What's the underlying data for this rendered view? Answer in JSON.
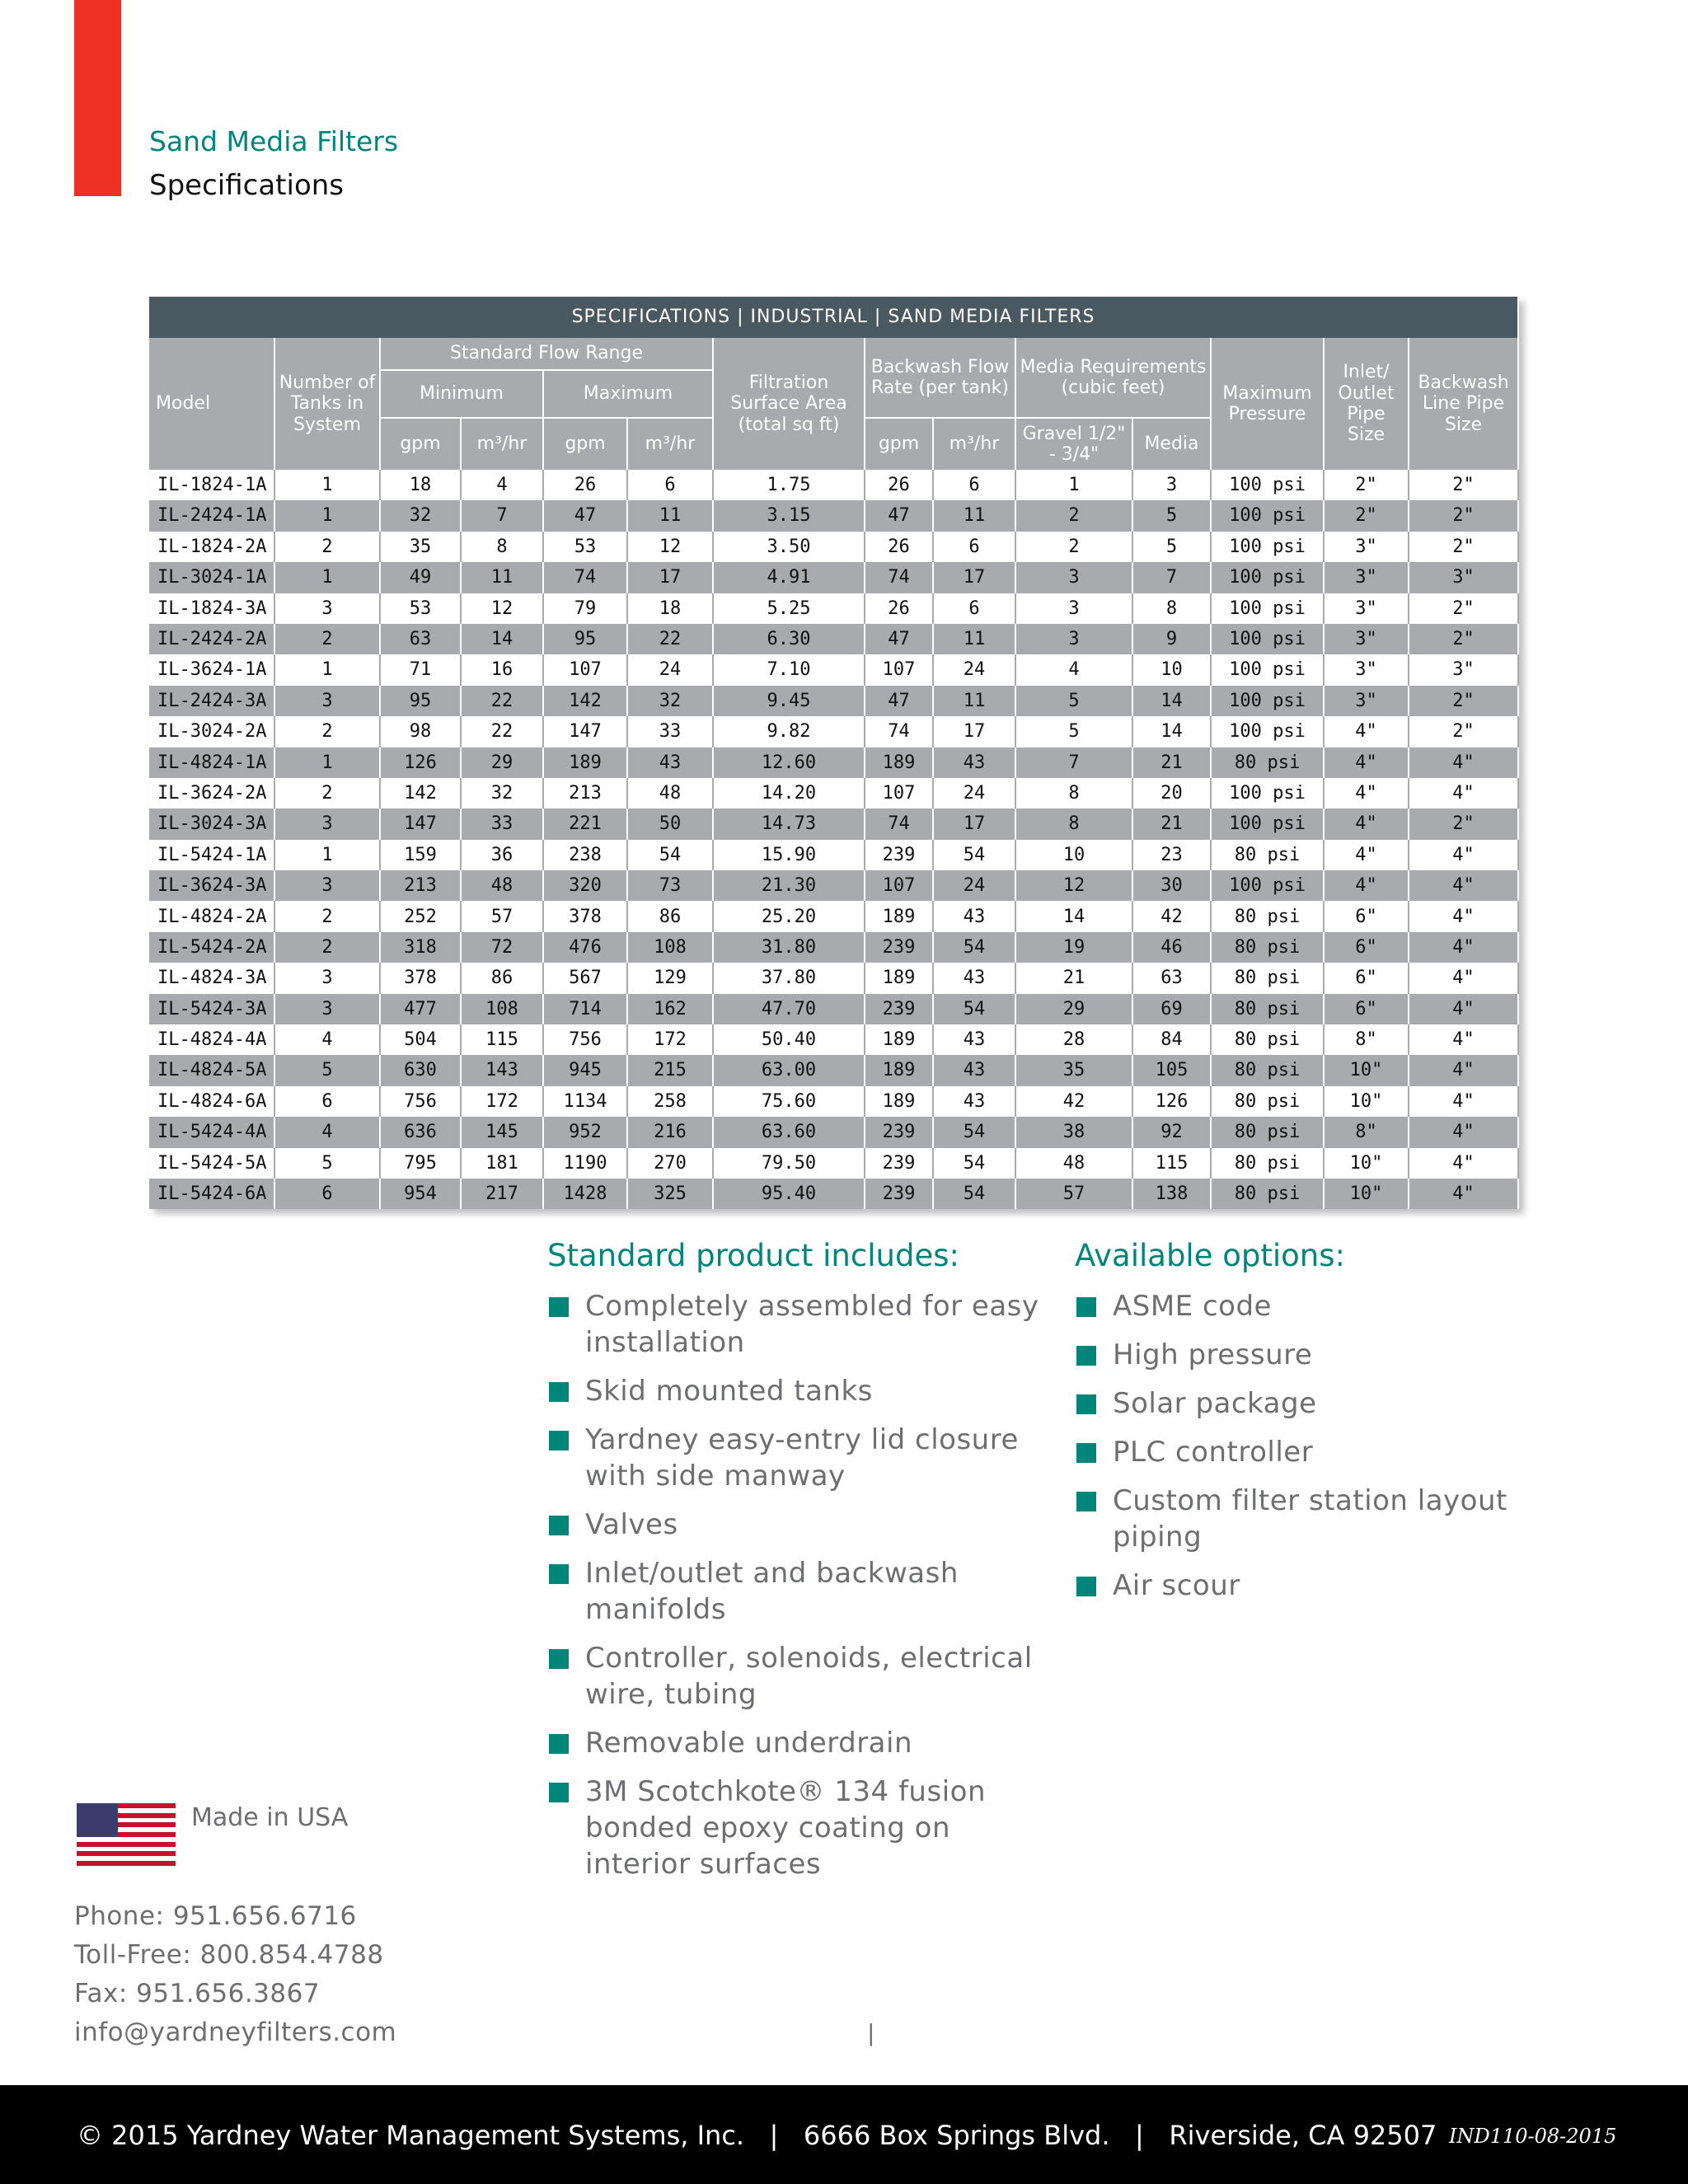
{
  "header": {
    "section": "Sand Media Filters",
    "title": "Specifications"
  },
  "table": {
    "title": "SPECIFICATIONS | INDUSTRIAL | SAND MEDIA FILTERS",
    "columns": {
      "model": "Model",
      "tanks": "Number of Tanks in System",
      "flow_range": "Standard Flow Range",
      "minimum": "Minimum",
      "maximum": "Maximum",
      "gpm": "gpm",
      "m3hr": "m³/hr",
      "filtration": "Filtration Surface Area (total sq ft)",
      "backwash_flow": "Backwash Flow Rate (per tank)",
      "media_req": "Media Requirements (cubic feet)",
      "gravel": "Gravel 1/2\" - 3/4\"",
      "media": "Media",
      "pressure": "Maximum Pressure",
      "inlet": "Inlet/ Outlet Pipe Size",
      "backwash_line": "Backwash Line Pipe Size"
    },
    "rows": [
      [
        "IL-1824-1A",
        "1",
        "18",
        "4",
        "26",
        "6",
        "1.75",
        "26",
        "6",
        "1",
        "3",
        "100 psi",
        "2\"",
        "2\""
      ],
      [
        "IL-2424-1A",
        "1",
        "32",
        "7",
        "47",
        "11",
        "3.15",
        "47",
        "11",
        "2",
        "5",
        "100 psi",
        "2\"",
        "2\""
      ],
      [
        "IL-1824-2A",
        "2",
        "35",
        "8",
        "53",
        "12",
        "3.50",
        "26",
        "6",
        "2",
        "5",
        "100 psi",
        "3\"",
        "2\""
      ],
      [
        "IL-3024-1A",
        "1",
        "49",
        "11",
        "74",
        "17",
        "4.91",
        "74",
        "17",
        "3",
        "7",
        "100 psi",
        "3\"",
        "3\""
      ],
      [
        "IL-1824-3A",
        "3",
        "53",
        "12",
        "79",
        "18",
        "5.25",
        "26",
        "6",
        "3",
        "8",
        "100 psi",
        "3\"",
        "2\""
      ],
      [
        "IL-2424-2A",
        "2",
        "63",
        "14",
        "95",
        "22",
        "6.30",
        "47",
        "11",
        "3",
        "9",
        "100 psi",
        "3\"",
        "2\""
      ],
      [
        "IL-3624-1A",
        "1",
        "71",
        "16",
        "107",
        "24",
        "7.10",
        "107",
        "24",
        "4",
        "10",
        "100 psi",
        "3\"",
        "3\""
      ],
      [
        "IL-2424-3A",
        "3",
        "95",
        "22",
        "142",
        "32",
        "9.45",
        "47",
        "11",
        "5",
        "14",
        "100 psi",
        "3\"",
        "2\""
      ],
      [
        "IL-3024-2A",
        "2",
        "98",
        "22",
        "147",
        "33",
        "9.82",
        "74",
        "17",
        "5",
        "14",
        "100 psi",
        "4\"",
        "2\""
      ],
      [
        "IL-4824-1A",
        "1",
        "126",
        "29",
        "189",
        "43",
        "12.60",
        "189",
        "43",
        "7",
        "21",
        "80 psi",
        "4\"",
        "4\""
      ],
      [
        "IL-3624-2A",
        "2",
        "142",
        "32",
        "213",
        "48",
        "14.20",
        "107",
        "24",
        "8",
        "20",
        "100 psi",
        "4\"",
        "4\""
      ],
      [
        "IL-3024-3A",
        "3",
        "147",
        "33",
        "221",
        "50",
        "14.73",
        "74",
        "17",
        "8",
        "21",
        "100 psi",
        "4\"",
        "2\""
      ],
      [
        "IL-5424-1A",
        "1",
        "159",
        "36",
        "238",
        "54",
        "15.90",
        "239",
        "54",
        "10",
        "23",
        "80 psi",
        "4\"",
        "4\""
      ],
      [
        "IL-3624-3A",
        "3",
        "213",
        "48",
        "320",
        "73",
        "21.30",
        "107",
        "24",
        "12",
        "30",
        "100 psi",
        "4\"",
        "4\""
      ],
      [
        "IL-4824-2A",
        "2",
        "252",
        "57",
        "378",
        "86",
        "25.20",
        "189",
        "43",
        "14",
        "42",
        "80 psi",
        "6\"",
        "4\""
      ],
      [
        "IL-5424-2A",
        "2",
        "318",
        "72",
        "476",
        "108",
        "31.80",
        "239",
        "54",
        "19",
        "46",
        "80 psi",
        "6\"",
        "4\""
      ],
      [
        "IL-4824-3A",
        "3",
        "378",
        "86",
        "567",
        "129",
        "37.80",
        "189",
        "43",
        "21",
        "63",
        "80 psi",
        "6\"",
        "4\""
      ],
      [
        "IL-5424-3A",
        "3",
        "477",
        "108",
        "714",
        "162",
        "47.70",
        "239",
        "54",
        "29",
        "69",
        "80 psi",
        "6\"",
        "4\""
      ],
      [
        "IL-4824-4A",
        "4",
        "504",
        "115",
        "756",
        "172",
        "50.40",
        "189",
        "43",
        "28",
        "84",
        "80 psi",
        "8\"",
        "4\""
      ],
      [
        "IL-4824-5A",
        "5",
        "630",
        "143",
        "945",
        "215",
        "63.00",
        "189",
        "43",
        "35",
        "105",
        "80 psi",
        "10\"",
        "4\""
      ],
      [
        "IL-4824-6A",
        "6",
        "756",
        "172",
        "1134",
        "258",
        "75.60",
        "189",
        "43",
        "42",
        "126",
        "80 psi",
        "10\"",
        "4\""
      ],
      [
        "IL-5424-4A",
        "4",
        "636",
        "145",
        "952",
        "216",
        "63.60",
        "239",
        "54",
        "38",
        "92",
        "80 psi",
        "8\"",
        "4\""
      ],
      [
        "IL-5424-5A",
        "5",
        "795",
        "181",
        "1190",
        "270",
        "79.50",
        "239",
        "54",
        "48",
        "115",
        "80 psi",
        "10\"",
        "4\""
      ],
      [
        "IL-5424-6A",
        "6",
        "954",
        "217",
        "1428",
        "325",
        "95.40",
        "239",
        "54",
        "57",
        "138",
        "80 psi",
        "10\"",
        "4\""
      ]
    ]
  },
  "standard": {
    "heading": "Standard product includes:",
    "items": [
      "Completely assembled for easy installation",
      "Skid mounted tanks",
      "Yardney easy-entry lid closure with side manway",
      "Valves",
      "Inlet/outlet and backwash manifolds",
      "Controller, solenoids, electrical wire, tubing",
      "Removable underdrain",
      "3M Scotchkote® 134 fusion bonded epoxy coating on interior surfaces"
    ]
  },
  "options": {
    "heading": "Available options:",
    "items": [
      "ASME code",
      "High pressure",
      "Solar package",
      "PLC controller",
      "Custom filter station layout piping",
      "Air scour"
    ]
  },
  "made_in": "Made in USA",
  "contact": [
    "Phone: 951.656.6716",
    "Toll-Free: 800.854.4788",
    "Fax: 951.656.3867",
    "info@yardneyfilters.com"
  ],
  "page_marker": "|",
  "footer": {
    "text": "© 2015 Yardney Water Management Systems, Inc.   |   6666 Box Springs Blvd.   |   Riverside, CA 92507",
    "code": "IND110-08-2015"
  }
}
